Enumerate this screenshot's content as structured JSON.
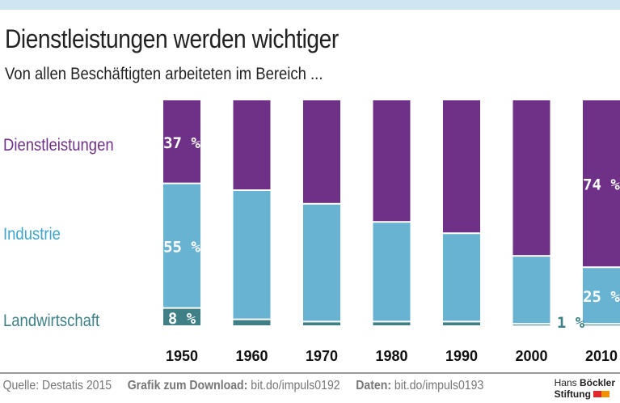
{
  "title": "Dienstleistungen werden wichtiger",
  "subtitle": "Von allen Beschäftigten arbeiteten im Bereich ...",
  "footer": {
    "source": "Quelle: Destatis 2015",
    "download_label": "Grafik zum Download:",
    "download_url": "bit.do/impuls0192",
    "data_label": "Daten:",
    "data_url": "bit.do/impuls0193"
  },
  "logo": {
    "line1a": "Hans ",
    "line1b": "Böckler",
    "line2": "Stiftung"
  },
  "colors": {
    "Dienstleistungen": "#6e3187",
    "Industrie": "#68b3d1",
    "Landwirtschaft": "#3e8086"
  },
  "chart_data": {
    "type": "bar",
    "stacked": true,
    "categories": [
      "1950",
      "1960",
      "1970",
      "1980",
      "1990",
      "2000",
      "2010"
    ],
    "series": [
      {
        "name": "Landwirtschaft",
        "values": [
          8,
          3,
          2,
          2,
          2,
          1,
          1
        ]
      },
      {
        "name": "Industrie",
        "values": [
          55,
          57,
          52,
          44,
          39,
          30,
          25
        ]
      },
      {
        "name": "Dienstleistungen",
        "values": [
          37,
          40,
          46,
          54,
          59,
          69,
          74
        ]
      }
    ],
    "data_labels": [
      {
        "series": "Dienstleistungen",
        "category": "1950",
        "text": "37 %"
      },
      {
        "series": "Industrie",
        "category": "1950",
        "text": "55 %"
      },
      {
        "series": "Landwirtschaft",
        "category": "1950",
        "text": "8 %"
      },
      {
        "series": "Dienstleistungen",
        "category": "2010",
        "text": "74 %"
      },
      {
        "series": "Industrie",
        "category": "2010",
        "text": "25 %"
      },
      {
        "series": "Landwirtschaft",
        "category": "2010",
        "text": "1 %"
      }
    ],
    "ylim": [
      0,
      100
    ],
    "grid": false,
    "legend": "left"
  }
}
